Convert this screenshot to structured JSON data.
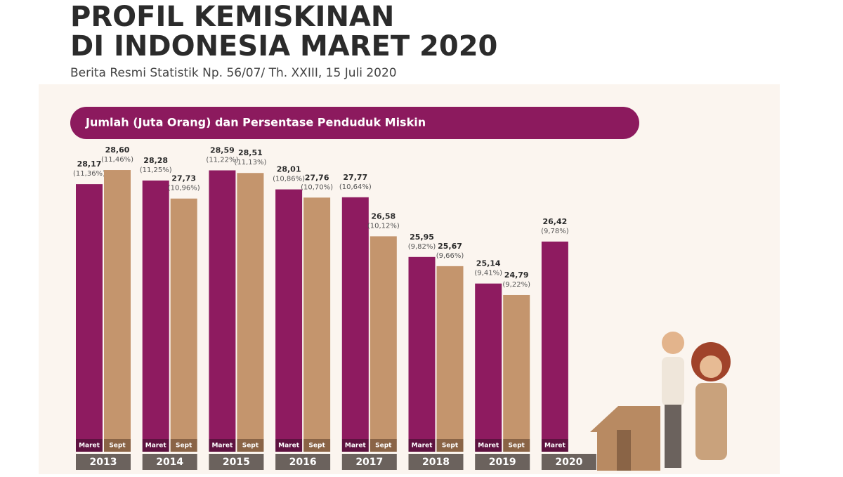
{
  "chart_data": {
    "type": "bar",
    "title": "PROFIL KEMISKINAN",
    "title_line2": "DI INDONESIA MARET 2020",
    "subtitle": "Berita Resmi Statistik Np. 56/07/ Th. XXIII, 15 Juli 2020",
    "chart_heading": "Jumlah (Juta Orang) dan Persentase Penduduk Miskin",
    "categories": [
      "2013",
      "2014",
      "2015",
      "2016",
      "2017",
      "2018",
      "2019",
      "2020"
    ],
    "ylim": [
      20.4,
      29.5
    ],
    "series": [
      {
        "name": "Maret",
        "color": "#8e1b60",
        "values": [
          28.17,
          28.28,
          28.59,
          28.01,
          27.77,
          25.95,
          25.14,
          26.42
        ],
        "value_labels": [
          "28,17",
          "28,28",
          "28,59",
          "28,01",
          "27,77",
          "25,95",
          "25,14",
          "26,42"
        ],
        "percent_labels": [
          "(11,36%)",
          "(11,25%)",
          "(11,22%)",
          "(10,86%)",
          "(10,64%)",
          "(9,82%)",
          "(9,41%)",
          "(9,78%)"
        ]
      },
      {
        "name": "Sept",
        "color": "#c4956d",
        "values": [
          28.6,
          27.73,
          28.51,
          27.76,
          26.58,
          25.67,
          24.79,
          null
        ],
        "value_labels": [
          "28,60",
          "27,73",
          "28,51",
          "27,76",
          "26,58",
          "25,67",
          "24,79",
          null
        ],
        "percent_labels": [
          "(11,46%)",
          "(10,96%)",
          "(11,13%)",
          "(10,70%)",
          "(10,12%)",
          "(9,66%)",
          "(9,22%)",
          null
        ]
      }
    ]
  }
}
